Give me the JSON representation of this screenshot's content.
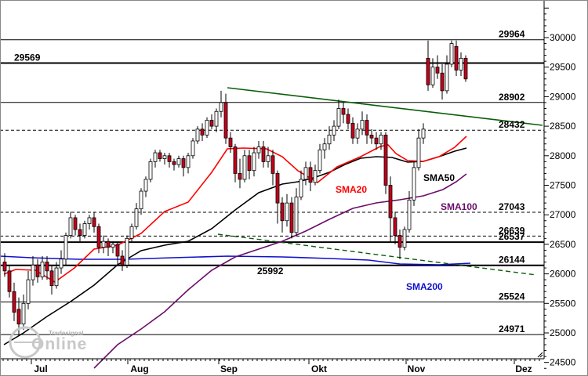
{
  "chart_data": {
    "type": "candlestick",
    "y_axis": {
      "ticks": [
        "24500",
        "25000",
        "25500",
        "26000",
        "26500",
        "27000",
        "27500",
        "28000",
        "28500",
        "29000",
        "29500",
        "30000"
      ],
      "ylim": [
        24400,
        30550
      ],
      "position": "right"
    },
    "x_axis": {
      "ticks": [
        "Jul",
        "Aug",
        "Sep",
        "Okt",
        "Nov",
        "Dez"
      ]
    },
    "levels": [
      {
        "label": "29964",
        "value": 29964,
        "style": "solid",
        "label_side": "right"
      },
      {
        "label": "29569",
        "value": 29569,
        "style": "solid-thick",
        "label_side": "left"
      },
      {
        "label": "28902",
        "value": 28902,
        "style": "solid",
        "label_side": "right"
      },
      {
        "label": "28432",
        "value": 28432,
        "style": "dashed",
        "label_side": "right"
      },
      {
        "label": "27043",
        "value": 27043,
        "style": "dashed",
        "label_side": "right"
      },
      {
        "label": "26639",
        "value": 26639,
        "style": "dashed",
        "label_side": "right"
      },
      {
        "label": "26537",
        "value": 26537,
        "style": "solid-thick",
        "label_side": "right"
      },
      {
        "label": "26144",
        "value": 26144,
        "style": "solid-thick",
        "label_side": "right"
      },
      {
        "label": "25992",
        "value": 25992,
        "style": "none",
        "label_side": "middle"
      },
      {
        "label": "25524",
        "value": 25524,
        "style": "solid",
        "label_side": "right"
      },
      {
        "label": "24971",
        "value": 24971,
        "style": "solid",
        "label_side": "right"
      }
    ],
    "moving_averages": [
      {
        "name": "SMA20",
        "color": "#ff0000"
      },
      {
        "name": "SMA50",
        "color": "#000000"
      },
      {
        "name": "SMA100",
        "color": "#6a0d6a"
      },
      {
        "name": "SMA200",
        "color": "#1010cc"
      }
    ],
    "trendlines": [
      {
        "color": "#0b5d0b",
        "style": "solid"
      },
      {
        "color": "#0b5d0b",
        "style": "dashed"
      }
    ],
    "colors": {
      "up": "#ffffff",
      "down": "#c4001a",
      "wick": "#000000"
    }
  },
  "watermark": {
    "brand": "Tradesignal",
    "product": "Online"
  }
}
